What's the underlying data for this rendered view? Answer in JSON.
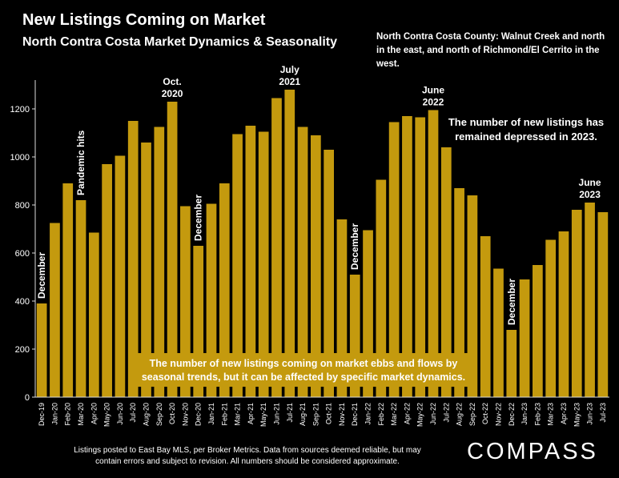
{
  "header": {
    "title": "New Listings Coming on Market",
    "subtitle": "North Contra Costa Market Dynamics & Seasonality",
    "county_note": "North Contra Costa County: Walnut Creek and north in the east, and north of Richmond/El Cerrito in the west."
  },
  "footer": {
    "note": "Listings posted to East Bay MLS, per Broker Metrics. Data from sources deemed reliable, but may contain errors and subject to revision. All numbers should be considered approximate.",
    "brand": "COMPASS"
  },
  "colors": {
    "bar": "#c49a0e",
    "background": "#000000",
    "text": "#ffffff",
    "axis": "#dddddd"
  },
  "chart_data": {
    "type": "bar",
    "title": "New Listings Coming on Market",
    "xlabel": "",
    "ylabel": "",
    "ylim": [
      0,
      1300
    ],
    "yticks": [
      0,
      200,
      400,
      600,
      800,
      1000,
      1200
    ],
    "grid": false,
    "categories": [
      "Dec-19",
      "Jan-20",
      "Feb-20",
      "Mar-20",
      "Apr-20",
      "May-20",
      "Jun-20",
      "Jul-20",
      "Aug-20",
      "Sep-20",
      "Oct-20",
      "Nov-20",
      "Dec-20",
      "Jan-21",
      "Feb-21",
      "Mar-21",
      "Apr-21",
      "May-21",
      "Jun-21",
      "Jul-21",
      "Aug-21",
      "Sep-21",
      "Oct-21",
      "Nov-21",
      "Dec-21",
      "Jan-22",
      "Feb-22",
      "Mar-22",
      "Apr-22",
      "May-22",
      "Jun-22",
      "Jul-22",
      "Aug-22",
      "Sep-22",
      "Oct-22",
      "Nov-22",
      "Dec-22",
      "Jan-23",
      "Feb-23",
      "Mar-23",
      "Apr-23",
      "May-23",
      "Jun-23",
      "Jul-23"
    ],
    "values": [
      390,
      725,
      890,
      820,
      685,
      970,
      1005,
      1150,
      1060,
      1125,
      1230,
      795,
      630,
      805,
      890,
      1095,
      1130,
      1105,
      1245,
      1280,
      1125,
      1090,
      1030,
      740,
      510,
      695,
      905,
      1145,
      1170,
      1165,
      1195,
      1040,
      870,
      840,
      670,
      535,
      280,
      490,
      550,
      655,
      690,
      780,
      810,
      770
    ],
    "annotations": [
      {
        "text": "December",
        "category": "Dec-19",
        "orientation": "vertical"
      },
      {
        "text": "Pandemic hits",
        "category": "Mar-20",
        "orientation": "vertical"
      },
      {
        "text": "Oct.\n2020",
        "category": "Oct-20",
        "orientation": "horizontal"
      },
      {
        "text": "December",
        "category": "Dec-20",
        "orientation": "vertical"
      },
      {
        "text": "July\n2021",
        "category": "Jul-21",
        "orientation": "horizontal"
      },
      {
        "text": "December",
        "category": "Dec-21",
        "orientation": "vertical"
      },
      {
        "text": "June\n2022",
        "category": "Jun-22",
        "orientation": "horizontal"
      },
      {
        "text": "December",
        "category": "Dec-22",
        "orientation": "vertical"
      },
      {
        "text": "June\n2023",
        "category": "Jun-23",
        "orientation": "horizontal"
      }
    ],
    "callouts": [
      "The number of new listings has remained depressed in 2023.",
      "The number of new listings coming on market ebbs and flows by seasonal trends, but it can be affected by specific market dynamics."
    ]
  }
}
